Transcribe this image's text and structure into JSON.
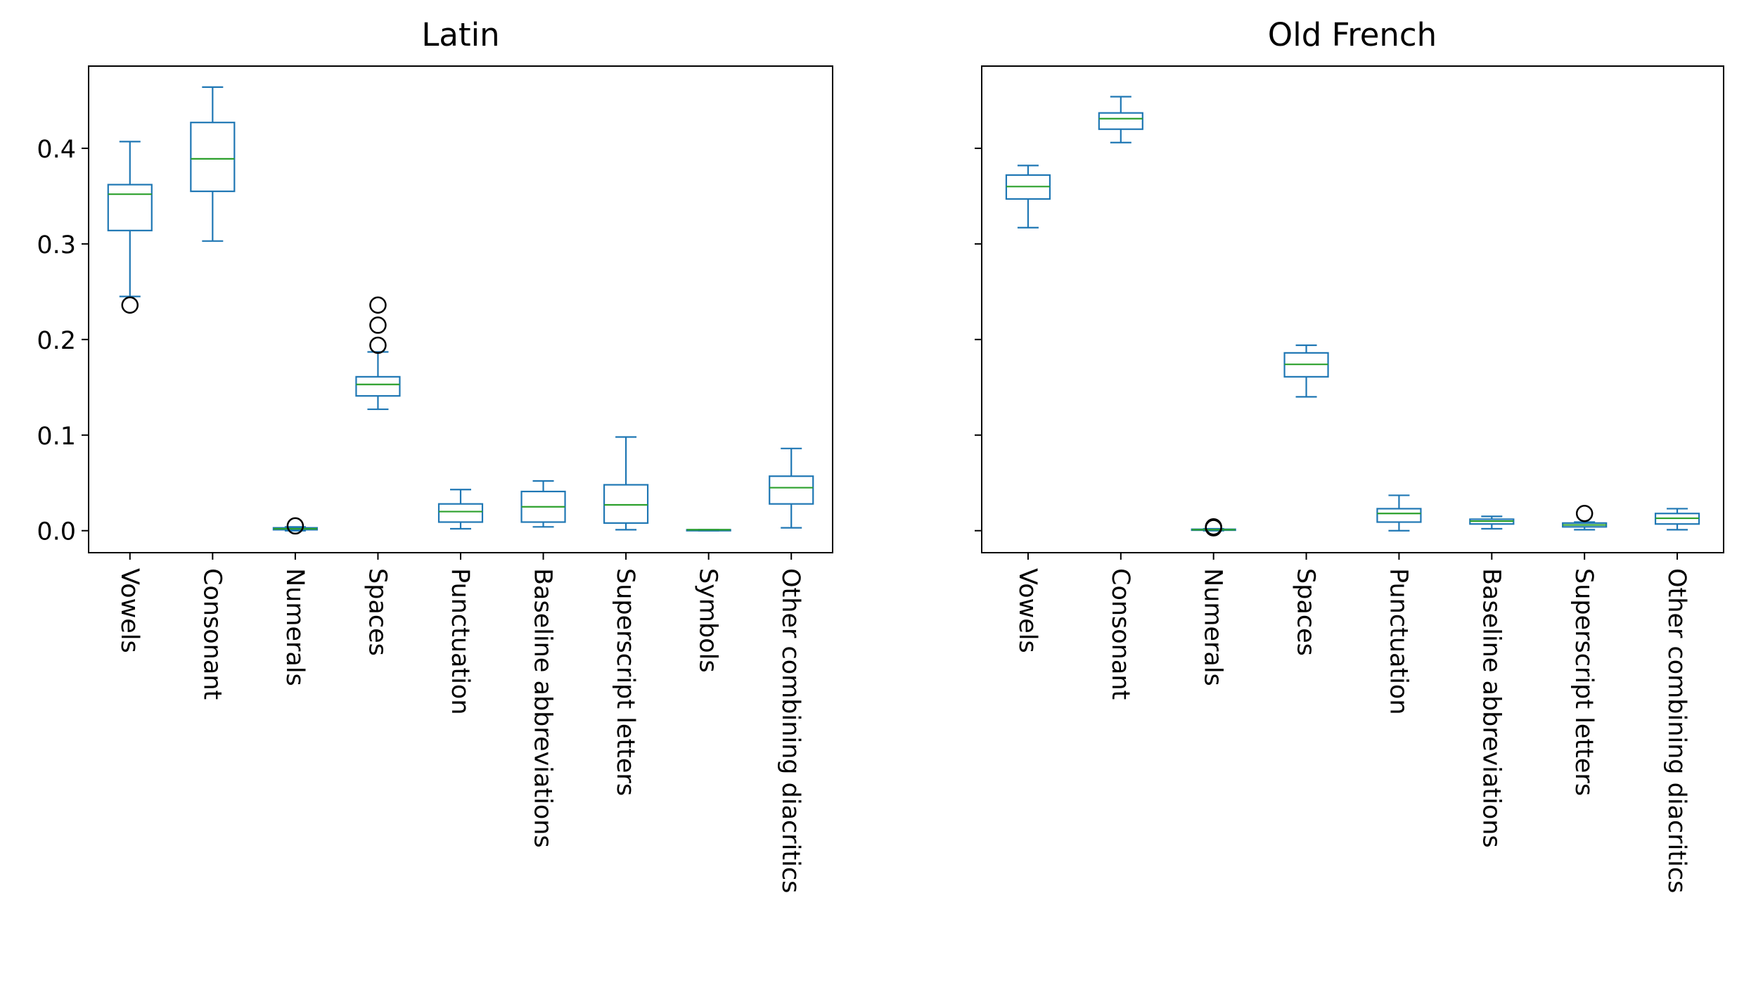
{
  "colors": {
    "box": "#1f77b4",
    "median": "#2ca02c",
    "flier": "#000000",
    "axis": "#000000"
  },
  "chart_data": [
    {
      "type": "box",
      "title": "Latin",
      "categories": [
        "Vowels",
        "Consonant",
        "Numerals",
        "Spaces",
        "Punctuation",
        "Baseline abbreviations",
        "Superscript letters",
        "Symbols",
        "Other combining diacritics"
      ],
      "boxes": [
        {
          "whislo": 0.245,
          "q1": 0.314,
          "med": 0.352,
          "q3": 0.362,
          "whishi": 0.407,
          "fliers": [
            0.236
          ]
        },
        {
          "whislo": 0.303,
          "q1": 0.355,
          "med": 0.389,
          "q3": 0.427,
          "whishi": 0.464,
          "fliers": []
        },
        {
          "whislo": 0.0,
          "q1": 0.001,
          "med": 0.002,
          "q3": 0.003,
          "whishi": 0.004,
          "fliers": [
            0.005
          ]
        },
        {
          "whislo": 0.127,
          "q1": 0.141,
          "med": 0.153,
          "q3": 0.161,
          "whishi": 0.187,
          "fliers": [
            0.194,
            0.215,
            0.236
          ]
        },
        {
          "whislo": 0.002,
          "q1": 0.009,
          "med": 0.02,
          "q3": 0.028,
          "whishi": 0.043,
          "fliers": []
        },
        {
          "whislo": 0.004,
          "q1": 0.009,
          "med": 0.025,
          "q3": 0.041,
          "whishi": 0.052,
          "fliers": []
        },
        {
          "whislo": 0.001,
          "q1": 0.008,
          "med": 0.027,
          "q3": 0.048,
          "whishi": 0.098,
          "fliers": []
        },
        {
          "whislo": 0.0,
          "q1": 0.0,
          "med": 0.001,
          "q3": 0.001,
          "whishi": 0.001,
          "fliers": []
        },
        {
          "whislo": 0.003,
          "q1": 0.028,
          "med": 0.045,
          "q3": 0.057,
          "whishi": 0.086,
          "fliers": []
        }
      ],
      "ylim": [
        -0.023,
        0.486
      ],
      "yticks": [
        0.0,
        0.1,
        0.2,
        0.3,
        0.4
      ],
      "ytick_labels": [
        "0.0",
        "0.1",
        "0.2",
        "0.3",
        "0.4"
      ]
    },
    {
      "type": "box",
      "title": "Old French",
      "categories": [
        "Vowels",
        "Consonant",
        "Numerals",
        "Spaces",
        "Punctuation",
        "Baseline abbreviations",
        "Superscript letters",
        "Other combining diacritics"
      ],
      "boxes": [
        {
          "whislo": 0.317,
          "q1": 0.347,
          "med": 0.36,
          "q3": 0.372,
          "whishi": 0.382,
          "fliers": []
        },
        {
          "whislo": 0.406,
          "q1": 0.42,
          "med": 0.431,
          "q3": 0.437,
          "whishi": 0.454,
          "fliers": []
        },
        {
          "whislo": 0.0,
          "q1": 0.0005,
          "med": 0.001,
          "q3": 0.0015,
          "whishi": 0.002,
          "fliers": [
            0.003,
            0.004
          ]
        },
        {
          "whislo": 0.14,
          "q1": 0.161,
          "med": 0.174,
          "q3": 0.186,
          "whishi": 0.194,
          "fliers": []
        },
        {
          "whislo": 0.0,
          "q1": 0.009,
          "med": 0.018,
          "q3": 0.023,
          "whishi": 0.037,
          "fliers": []
        },
        {
          "whislo": 0.002,
          "q1": 0.007,
          "med": 0.01,
          "q3": 0.012,
          "whishi": 0.015,
          "fliers": []
        },
        {
          "whislo": 0.001,
          "q1": 0.004,
          "med": 0.006,
          "q3": 0.008,
          "whishi": 0.009,
          "fliers": [
            0.018
          ]
        },
        {
          "whislo": 0.001,
          "q1": 0.007,
          "med": 0.013,
          "q3": 0.018,
          "whishi": 0.023,
          "fliers": []
        }
      ],
      "ylim": [
        -0.023,
        0.486
      ],
      "yticks": [
        0.0,
        0.1,
        0.2,
        0.3,
        0.4
      ],
      "ytick_labels": [],
      "sharey": true
    }
  ]
}
